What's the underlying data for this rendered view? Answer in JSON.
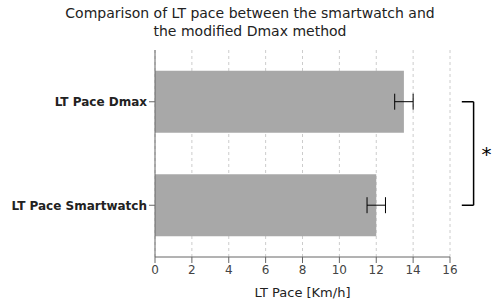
{
  "chart_data": {
    "type": "bar",
    "orientation": "horizontal",
    "title": "Comparison of LT pace between the smartwatch and\nthe modified Dmax method",
    "categories": [
      "LT Pace Dmax",
      "LT Pace Smartwatch"
    ],
    "values": [
      13.5,
      12.0
    ],
    "errors": [
      0.5,
      0.5
    ],
    "color": "#a8a8a8",
    "xlabel": "LT Pace [Km/h]",
    "xlim": [
      0,
      16
    ],
    "xticks": [
      0,
      2,
      4,
      6,
      8,
      10,
      12,
      14,
      16
    ],
    "grid": true,
    "annotations": [
      "*"
    ]
  }
}
